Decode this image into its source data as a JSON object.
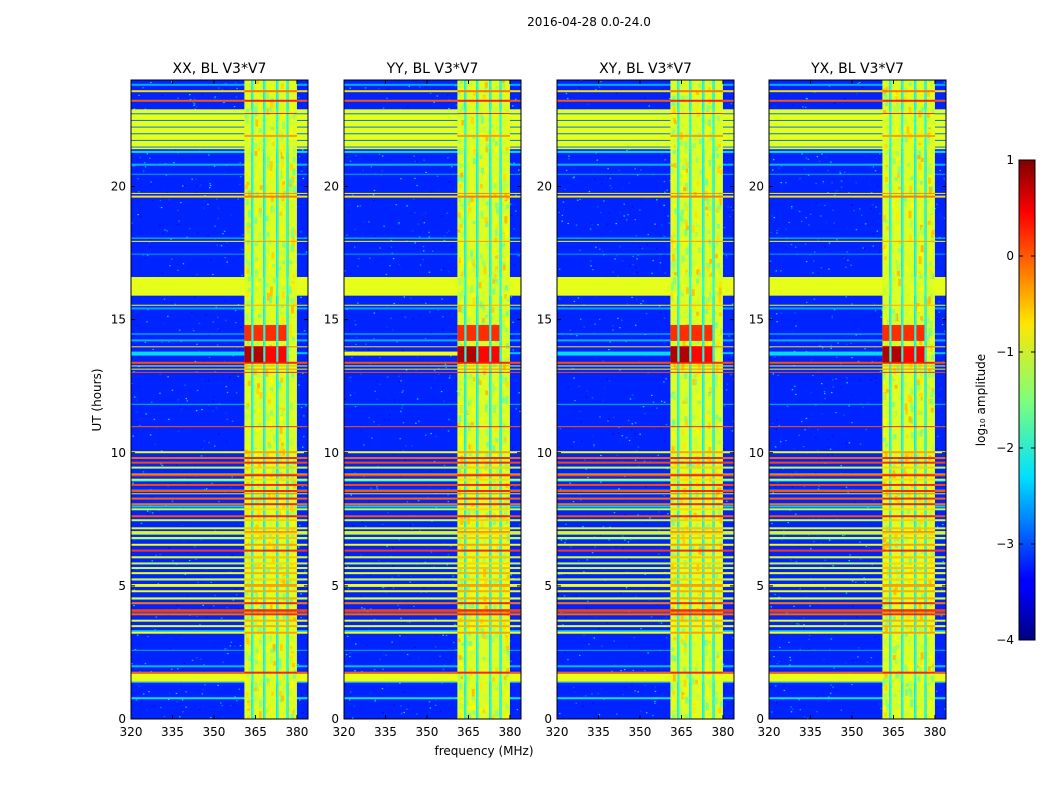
{
  "suptitle": "2016-04-28 0.0-24.0",
  "chart_data": {
    "type": "heatmap",
    "panels": [
      {
        "title": "XX, BL V3*V7"
      },
      {
        "title": "YY, BL V3*V7"
      },
      {
        "title": "XY, BL V3*V7"
      },
      {
        "title": "YX, BL V3*V7"
      }
    ],
    "xlabel": "frequency (MHz)",
    "ylabel": "UT (hours)",
    "xlim": [
      320,
      384
    ],
    "ylim": [
      0,
      24
    ],
    "xticks": [
      320,
      335,
      350,
      365,
      380
    ],
    "yticks": [
      0,
      5,
      10,
      15,
      20
    ],
    "colorbar": {
      "label": "log₁₀ amplitude",
      "range": [
        -4,
        1
      ],
      "ticks": [
        1,
        0,
        -1,
        -2,
        -3,
        -4
      ],
      "tick_labels": [
        "1",
        "0",
        "−1",
        "−2",
        "−3",
        "−4"
      ]
    },
    "bright_freq_band_mhz": [
      361,
      380
    ],
    "flagged_time_bands_hours": [
      {
        "start": 21.4,
        "end": 22.9,
        "level": -1.0
      },
      {
        "start": 15.9,
        "end": 16.6,
        "level": -1.0
      },
      {
        "start": 1.4,
        "end": 1.7,
        "level": -1.0
      }
    ],
    "rfi_event_hours": [
      13.4,
      14.0
    ]
  }
}
